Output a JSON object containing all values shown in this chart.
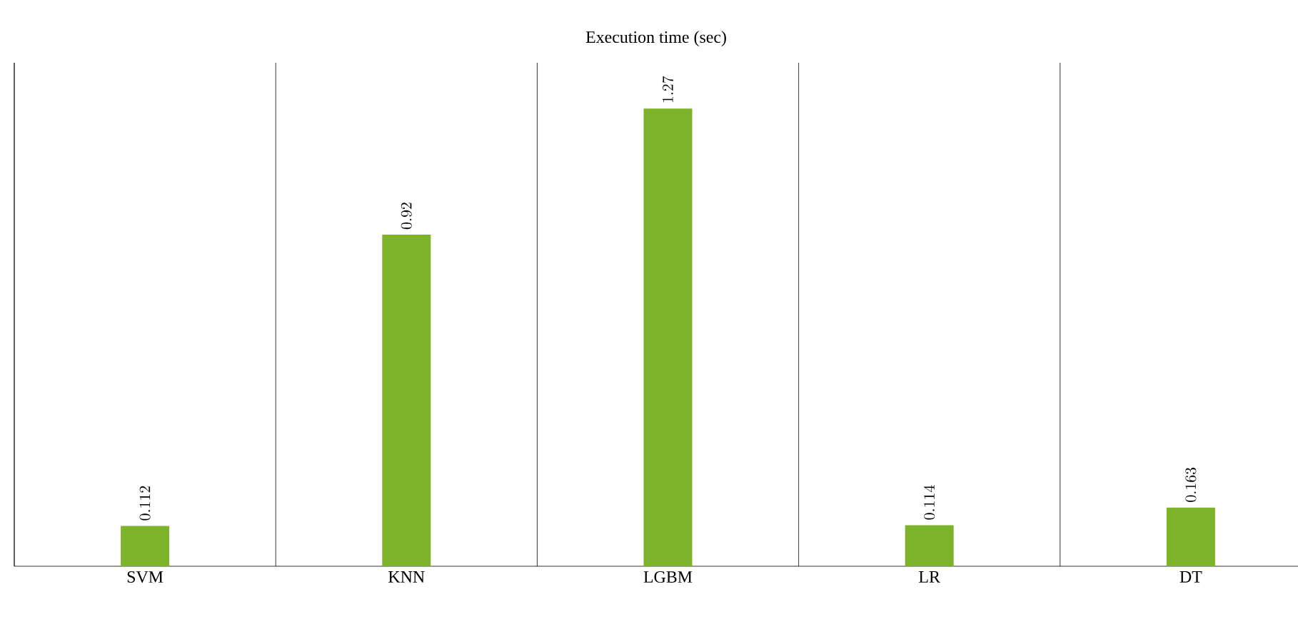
{
  "chart_data": {
    "type": "bar",
    "title": "Execution time (sec)",
    "categories": [
      "SVM",
      "KNN",
      "LGBM",
      "LR",
      "DT"
    ],
    "values": [
      0.112,
      0.92,
      1.27,
      0.114,
      0.163
    ],
    "color": "#7cb32a",
    "data_labels": true,
    "grid": "x"
  }
}
